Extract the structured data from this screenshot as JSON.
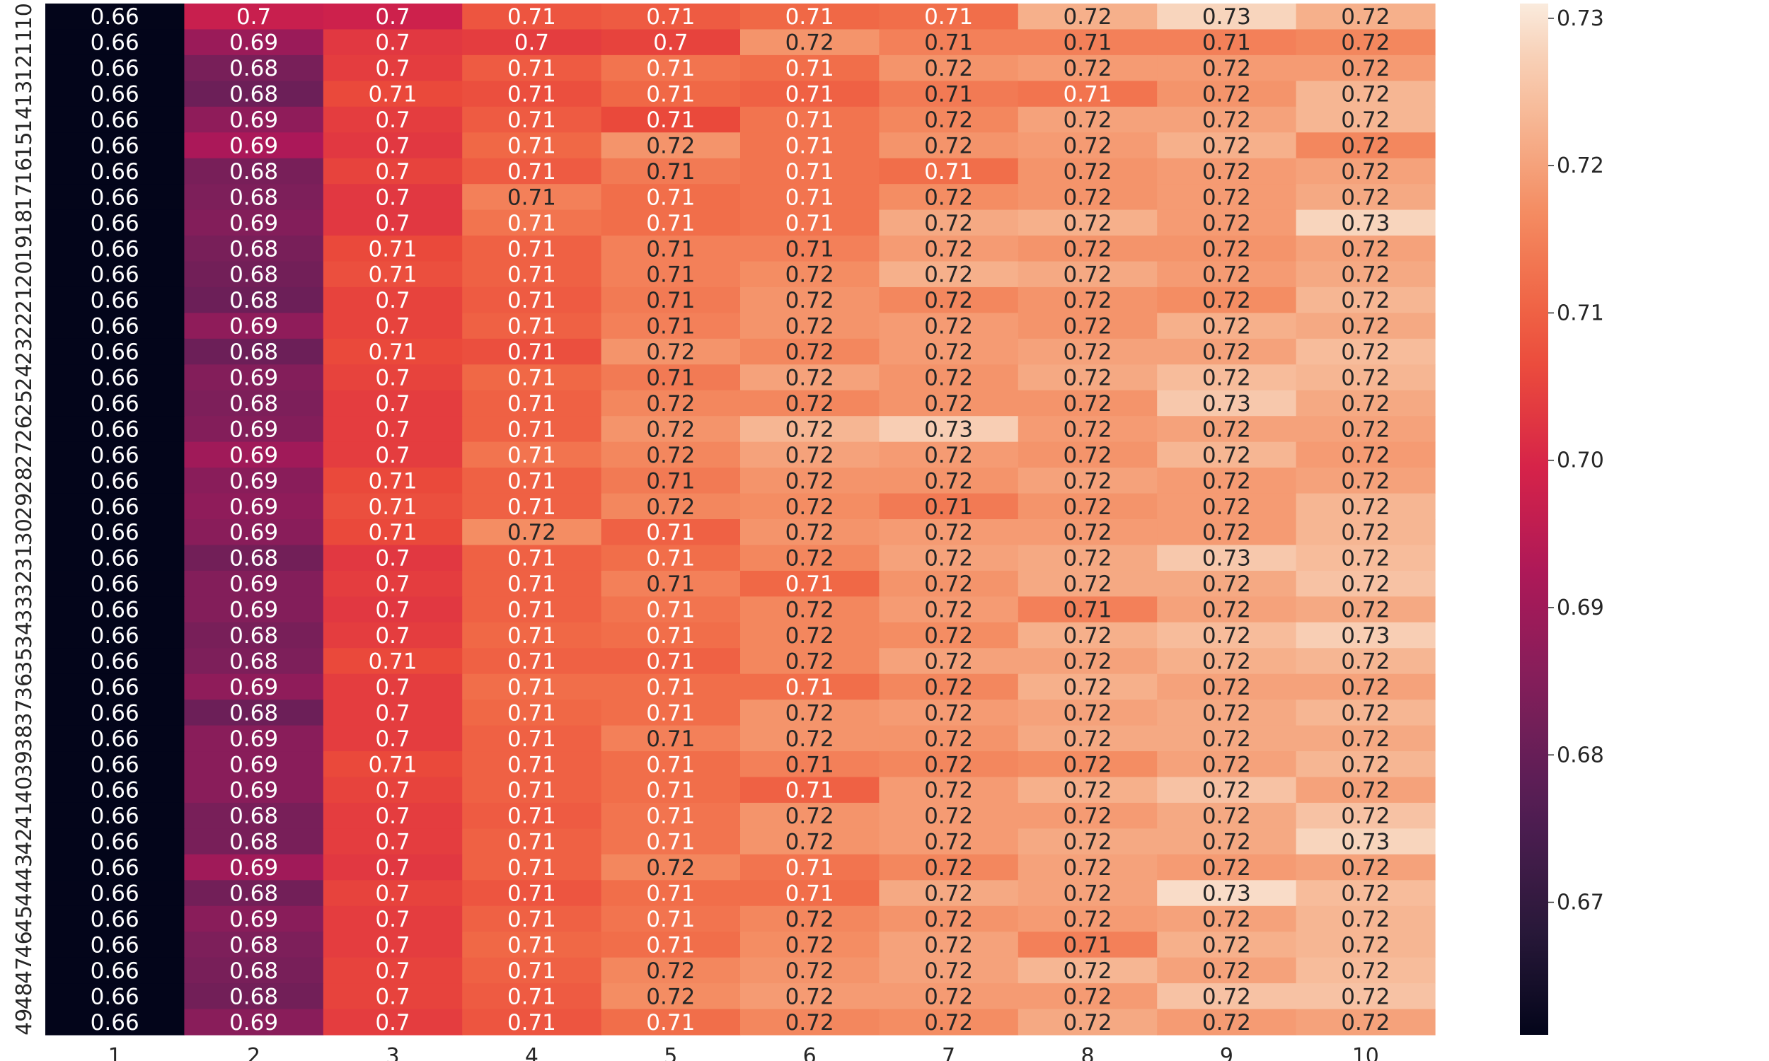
{
  "chart_data": {
    "type": "heatmap",
    "title": "",
    "xlabel": "",
    "ylabel": "",
    "x_categories": [
      "1",
      "2",
      "3",
      "4",
      "5",
      "6",
      "7",
      "8",
      "9",
      "10"
    ],
    "y_categories": [
      "10",
      "11",
      "12",
      "13",
      "14",
      "15",
      "16",
      "17",
      "18",
      "19",
      "20",
      "21",
      "22",
      "23",
      "24",
      "25",
      "26",
      "27",
      "28",
      "29",
      "30",
      "31",
      "32",
      "33",
      "34",
      "35",
      "36",
      "37",
      "38",
      "39",
      "40",
      "41",
      "42",
      "43",
      "44",
      "45",
      "46",
      "47",
      "48",
      "49"
    ],
    "y_tick_labels_visible": [
      "10",
      "11",
      "12",
      "13",
      "14",
      "15",
      "16",
      "17",
      "18",
      "19",
      "20",
      "21",
      "22",
      "23",
      "24",
      "25",
      "26",
      "27",
      "28",
      "29",
      "30",
      "31",
      "32",
      "33",
      "34",
      "35",
      "36",
      "37",
      "38",
      "39",
      "40",
      "41",
      "42",
      "43",
      "44",
      "45",
      "46",
      "47",
      "48",
      "49"
    ],
    "colormap": "rocket",
    "color_range": [
      0.661,
      0.731
    ],
    "colorbar_ticks": [
      0.67,
      0.68,
      0.69,
      0.7,
      0.71,
      0.72,
      0.73
    ],
    "colorbar_tick_labels": [
      "0.67",
      "0.68",
      "0.69",
      "0.70",
      "0.71",
      "0.72",
      "0.73"
    ],
    "values": [
      [
        0.661,
        0.697,
        0.698,
        0.708,
        0.709,
        0.711,
        0.712,
        0.722,
        0.728,
        0.722
      ],
      [
        0.661,
        0.689,
        0.703,
        0.704,
        0.705,
        0.718,
        0.715,
        0.715,
        0.715,
        0.716
      ],
      [
        0.661,
        0.683,
        0.704,
        0.709,
        0.713,
        0.712,
        0.718,
        0.719,
        0.719,
        0.719
      ],
      [
        0.661,
        0.681,
        0.706,
        0.707,
        0.711,
        0.71,
        0.714,
        0.713,
        0.718,
        0.723
      ],
      [
        0.661,
        0.687,
        0.704,
        0.709,
        0.706,
        0.713,
        0.716,
        0.72,
        0.72,
        0.723
      ],
      [
        0.661,
        0.692,
        0.703,
        0.711,
        0.718,
        0.713,
        0.718,
        0.719,
        0.722,
        0.716
      ],
      [
        0.661,
        0.683,
        0.705,
        0.709,
        0.714,
        0.713,
        0.712,
        0.718,
        0.719,
        0.72
      ],
      [
        0.661,
        0.684,
        0.703,
        0.715,
        0.712,
        0.713,
        0.717,
        0.718,
        0.719,
        0.721
      ],
      [
        0.661,
        0.685,
        0.703,
        0.713,
        0.712,
        0.713,
        0.721,
        0.722,
        0.719,
        0.728
      ],
      [
        0.661,
        0.683,
        0.706,
        0.71,
        0.715,
        0.715,
        0.719,
        0.718,
        0.718,
        0.72
      ],
      [
        0.661,
        0.682,
        0.707,
        0.71,
        0.715,
        0.717,
        0.722,
        0.721,
        0.719,
        0.721
      ],
      [
        0.661,
        0.681,
        0.705,
        0.709,
        0.714,
        0.718,
        0.716,
        0.718,
        0.717,
        0.723
      ],
      [
        0.661,
        0.687,
        0.705,
        0.71,
        0.715,
        0.718,
        0.719,
        0.718,
        0.722,
        0.721
      ],
      [
        0.661,
        0.681,
        0.706,
        0.707,
        0.718,
        0.716,
        0.719,
        0.72,
        0.72,
        0.724
      ],
      [
        0.661,
        0.685,
        0.705,
        0.711,
        0.714,
        0.72,
        0.718,
        0.721,
        0.724,
        0.723
      ],
      [
        0.661,
        0.684,
        0.704,
        0.71,
        0.716,
        0.716,
        0.718,
        0.718,
        0.726,
        0.721
      ],
      [
        0.661,
        0.685,
        0.704,
        0.71,
        0.718,
        0.723,
        0.727,
        0.719,
        0.72,
        0.72
      ],
      [
        0.661,
        0.69,
        0.704,
        0.713,
        0.716,
        0.72,
        0.719,
        0.718,
        0.723,
        0.719
      ],
      [
        0.661,
        0.686,
        0.706,
        0.71,
        0.714,
        0.718,
        0.718,
        0.72,
        0.719,
        0.72
      ],
      [
        0.661,
        0.687,
        0.707,
        0.71,
        0.716,
        0.717,
        0.714,
        0.718,
        0.719,
        0.723
      ],
      [
        0.661,
        0.686,
        0.706,
        0.717,
        0.71,
        0.718,
        0.719,
        0.719,
        0.719,
        0.723
      ],
      [
        0.661,
        0.682,
        0.703,
        0.71,
        0.712,
        0.716,
        0.72,
        0.721,
        0.726,
        0.724
      ],
      [
        0.661,
        0.685,
        0.704,
        0.71,
        0.715,
        0.711,
        0.718,
        0.721,
        0.721,
        0.725
      ],
      [
        0.661,
        0.685,
        0.703,
        0.71,
        0.713,
        0.716,
        0.719,
        0.715,
        0.72,
        0.721
      ],
      [
        0.661,
        0.683,
        0.704,
        0.711,
        0.712,
        0.716,
        0.717,
        0.722,
        0.724,
        0.727
      ],
      [
        0.661,
        0.684,
        0.706,
        0.71,
        0.71,
        0.716,
        0.72,
        0.72,
        0.722,
        0.723
      ],
      [
        0.661,
        0.687,
        0.704,
        0.712,
        0.712,
        0.712,
        0.716,
        0.722,
        0.72,
        0.72
      ],
      [
        0.661,
        0.681,
        0.704,
        0.711,
        0.712,
        0.718,
        0.719,
        0.72,
        0.721,
        0.723
      ],
      [
        0.661,
        0.686,
        0.704,
        0.71,
        0.715,
        0.718,
        0.718,
        0.721,
        0.721,
        0.721
      ],
      [
        0.661,
        0.686,
        0.706,
        0.71,
        0.712,
        0.715,
        0.716,
        0.717,
        0.72,
        0.723
      ],
      [
        0.661,
        0.686,
        0.705,
        0.71,
        0.712,
        0.71,
        0.719,
        0.722,
        0.725,
        0.72
      ],
      [
        0.661,
        0.683,
        0.704,
        0.709,
        0.713,
        0.718,
        0.719,
        0.719,
        0.721,
        0.725
      ],
      [
        0.661,
        0.683,
        0.704,
        0.71,
        0.713,
        0.718,
        0.719,
        0.721,
        0.721,
        0.728
      ],
      [
        0.661,
        0.69,
        0.703,
        0.71,
        0.716,
        0.713,
        0.716,
        0.72,
        0.719,
        0.72
      ],
      [
        0.661,
        0.682,
        0.705,
        0.708,
        0.712,
        0.712,
        0.721,
        0.72,
        0.729,
        0.724
      ],
      [
        0.661,
        0.686,
        0.704,
        0.71,
        0.713,
        0.716,
        0.718,
        0.719,
        0.72,
        0.723
      ],
      [
        0.661,
        0.684,
        0.704,
        0.711,
        0.712,
        0.717,
        0.72,
        0.715,
        0.722,
        0.723
      ],
      [
        0.661,
        0.683,
        0.705,
        0.71,
        0.716,
        0.718,
        0.72,
        0.723,
        0.72,
        0.724
      ],
      [
        0.661,
        0.682,
        0.705,
        0.709,
        0.717,
        0.719,
        0.719,
        0.719,
        0.725,
        0.725
      ],
      [
        0.661,
        0.686,
        0.704,
        0.708,
        0.712,
        0.716,
        0.717,
        0.721,
        0.719,
        0.72
      ]
    ]
  }
}
